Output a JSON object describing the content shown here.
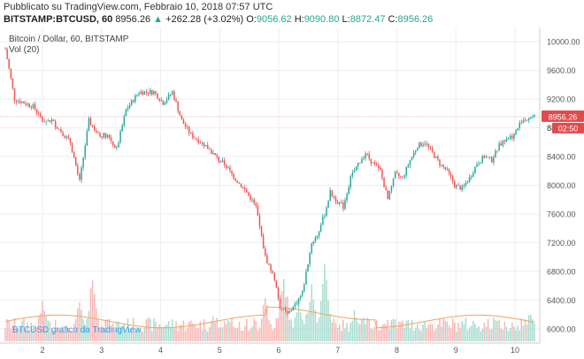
{
  "header": {
    "published": "Pubblicato su TradingView.com, Febbraio 10, 2018 07:57 UTC",
    "symbol": "BITSTAMP:BTCUSD, 60",
    "last": "8956.26",
    "change_arrow": "▲",
    "change": "+262.28 (+3.02%)",
    "o_label": "O:",
    "o_value": "9056.62",
    "h_label": "H:",
    "h_value": "9090.80",
    "l_label": "L:",
    "l_value": "8872.47",
    "c_label": "C:",
    "c_value": "8956.26"
  },
  "legend": {
    "title": "Bitcoin / Dollar, 60, BITSTAMP",
    "volume": "Vol (20)"
  },
  "watermark": "BTCUSD grafico da TradingView",
  "price_badge": {
    "price": "8956.26",
    "countdown": "02:50",
    "partial": "8"
  },
  "colors": {
    "up": "#26a69a",
    "down": "#ef5350",
    "vol_up": "#a6dccf",
    "vol_down": "#f7b6b4",
    "vol_ma": "#f6a15f",
    "grid": "#eeeeee",
    "badge": "#e24b4b"
  },
  "chart_data": {
    "type": "candlestick",
    "ylim": [
      5800,
      10200
    ],
    "y_ticks": [
      "10000.00",
      "9600.00",
      "9200.00",
      "8800.00",
      "8400.00",
      "8000.00",
      "7600.00",
      "7200.00",
      "6800.00",
      "6400.00",
      "6000.00"
    ],
    "x_ticks": [
      "2",
      "3",
      "4",
      "5",
      "6",
      "7",
      "8",
      "9",
      "10"
    ],
    "last_price": 8956.26,
    "path": [
      [
        0,
        9900
      ],
      [
        5,
        9200
      ],
      [
        15,
        9100
      ],
      [
        20,
        8900
      ],
      [
        25,
        8900
      ],
      [
        35,
        8600
      ],
      [
        40,
        8050
      ],
      [
        45,
        8900
      ],
      [
        50,
        8700
      ],
      [
        55,
        8700
      ],
      [
        60,
        8500
      ],
      [
        65,
        9050
      ],
      [
        72,
        9300
      ],
      [
        80,
        9300
      ],
      [
        85,
        9150
      ],
      [
        90,
        9300
      ],
      [
        95,
        8900
      ],
      [
        100,
        8700
      ],
      [
        108,
        8550
      ],
      [
        115,
        8350
      ],
      [
        118,
        8300
      ],
      [
        122,
        8150
      ],
      [
        130,
        7900
      ],
      [
        135,
        7700
      ],
      [
        140,
        7000
      ],
      [
        145,
        6700
      ],
      [
        148,
        6300
      ],
      [
        152,
        6200
      ],
      [
        155,
        6300
      ],
      [
        160,
        6500
      ],
      [
        165,
        7200
      ],
      [
        168,
        7300
      ],
      [
        172,
        7600
      ],
      [
        175,
        7900
      ],
      [
        178,
        7800
      ],
      [
        182,
        7700
      ],
      [
        186,
        8100
      ],
      [
        190,
        8300
      ],
      [
        194,
        8450
      ],
      [
        198,
        8300
      ],
      [
        202,
        8200
      ],
      [
        206,
        7800
      ],
      [
        210,
        8150
      ],
      [
        214,
        8100
      ],
      [
        218,
        8350
      ],
      [
        222,
        8550
      ],
      [
        226,
        8600
      ],
      [
        230,
        8450
      ],
      [
        234,
        8300
      ],
      [
        238,
        8200
      ],
      [
        242,
        8000
      ],
      [
        246,
        7950
      ],
      [
        250,
        8100
      ],
      [
        254,
        8300
      ],
      [
        258,
        8400
      ],
      [
        262,
        8350
      ],
      [
        266,
        8550
      ],
      [
        270,
        8650
      ],
      [
        274,
        8700
      ],
      [
        278,
        8900
      ],
      [
        282,
        8950
      ],
      [
        285,
        8960
      ]
    ],
    "volume_peaks": [
      [
        20,
        0.55
      ],
      [
        40,
        0.52
      ],
      [
        47,
        0.85
      ],
      [
        55,
        0.3
      ],
      [
        112,
        0.35
      ],
      [
        140,
        0.6
      ],
      [
        150,
        0.95
      ],
      [
        158,
        0.55
      ],
      [
        165,
        0.85
      ],
      [
        172,
        1.0
      ],
      [
        188,
        0.4
      ],
      [
        205,
        0.25
      ],
      [
        265,
        0.35
      ],
      [
        283,
        0.45
      ]
    ],
    "volume_ma_level": 0.25
  }
}
